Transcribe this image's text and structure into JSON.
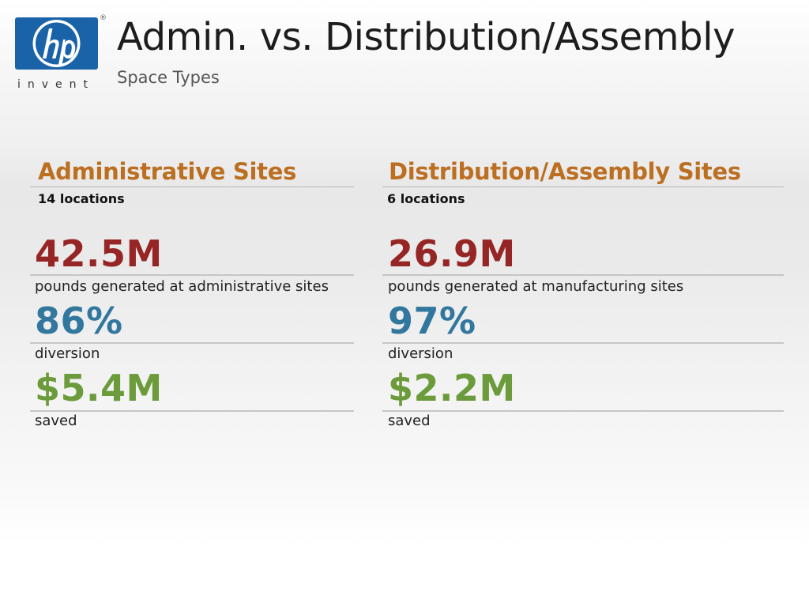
{
  "logo": {
    "text": "invent",
    "registered": "®"
  },
  "header": {
    "title": "Admin. vs. Distribution/Assembly",
    "subtitle": "Space Types"
  },
  "columns": [
    {
      "heading": "Administrative Sites",
      "locations": "14 locations",
      "stats": [
        {
          "value": "42.5M",
          "label": "pounds generated at administrative sites"
        },
        {
          "value": "86%",
          "label": "diversion"
        },
        {
          "value": "$5.4M",
          "label": "saved"
        }
      ]
    },
    {
      "heading": "Distribution/Assembly Sites",
      "locations": "6 locations",
      "stats": [
        {
          "value": "26.9M",
          "label": "pounds generated at manufacturing sites"
        },
        {
          "value": "97%",
          "label": "diversion"
        },
        {
          "value": "$2.2M",
          "label": "saved"
        }
      ]
    }
  ],
  "colors": {
    "heading": "#bc6f21",
    "pounds": "#962525",
    "diversion": "#32779e",
    "saved": "#6b9b3a",
    "logo_blue": "#1a63a8"
  }
}
